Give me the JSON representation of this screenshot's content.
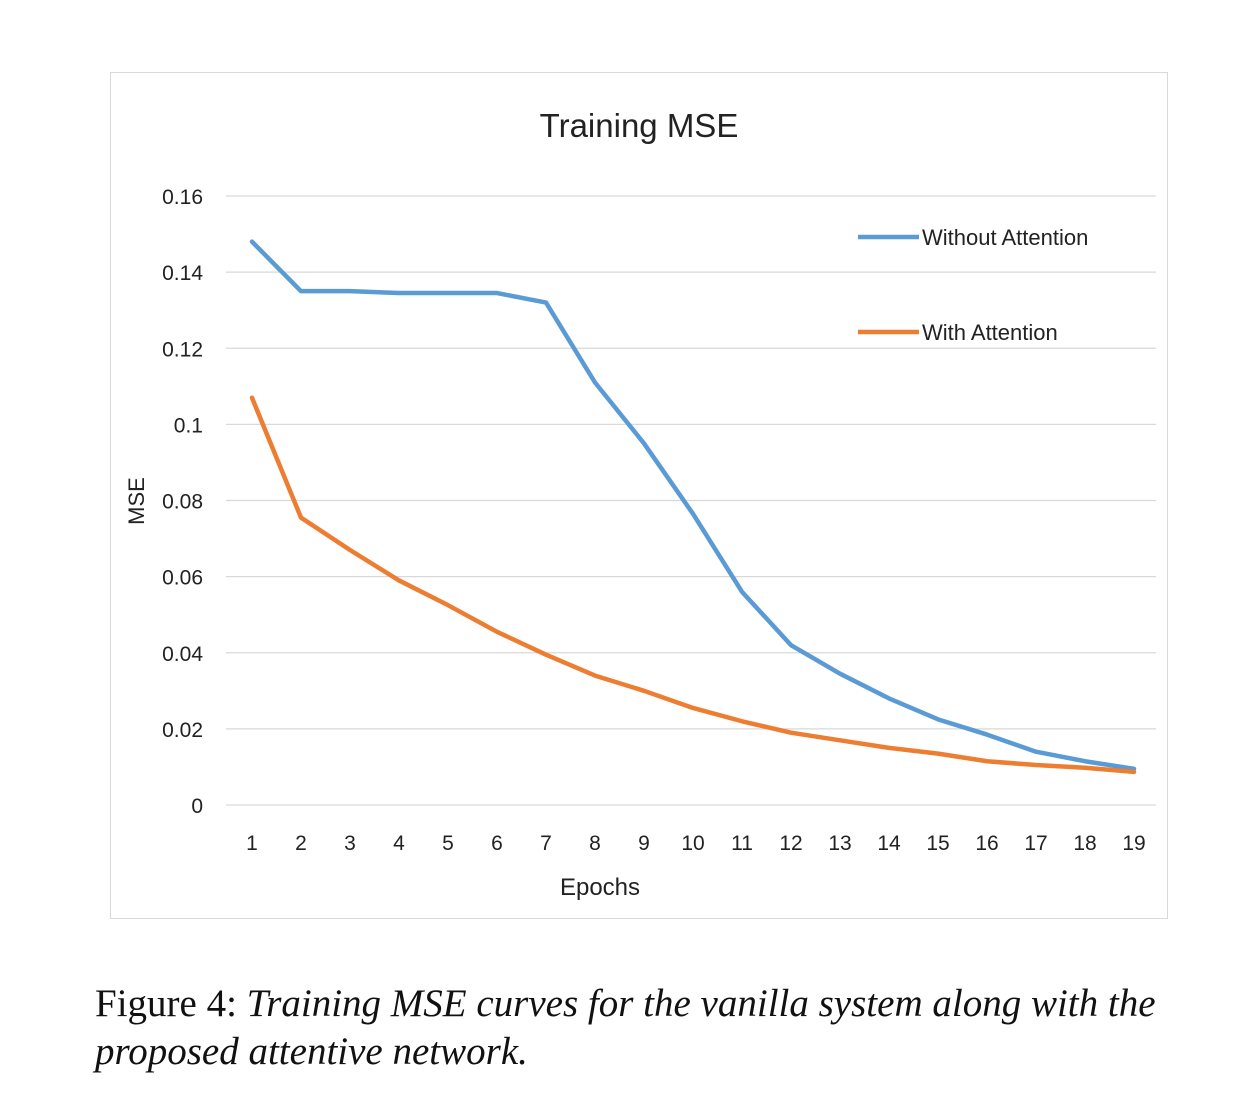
{
  "chart_data": {
    "type": "line",
    "title": "Training MSE",
    "xlabel": "Epochs",
    "ylabel": "MSE",
    "categories": [
      "1",
      "2",
      "3",
      "4",
      "5",
      "6",
      "7",
      "8",
      "9",
      "10",
      "11",
      "12",
      "13",
      "14",
      "15",
      "16",
      "17",
      "18",
      "19"
    ],
    "ylim": [
      0,
      0.16
    ],
    "yticks": [
      "0",
      "0.02",
      "0.04",
      "0.06",
      "0.08",
      "0.1",
      "0.12",
      "0.14",
      "0.16"
    ],
    "ytick_values": [
      0,
      0.02,
      0.04,
      0.06,
      0.08,
      0.1,
      0.12,
      0.14,
      0.16
    ],
    "grid": true,
    "legend": "top-right",
    "series": [
      {
        "name": "Without Attention",
        "color": "#5b9bd5",
        "values": [
          0.148,
          0.135,
          0.135,
          0.1345,
          0.1345,
          0.1345,
          0.132,
          0.111,
          0.095,
          0.0765,
          0.056,
          0.042,
          0.0345,
          0.028,
          0.0225,
          0.0185,
          0.014,
          0.0115,
          0.0095
        ]
      },
      {
        "name": "With Attention",
        "color": "#ed7d31",
        "values": [
          0.107,
          0.0755,
          0.067,
          0.059,
          0.0525,
          0.0455,
          0.0395,
          0.034,
          0.03,
          0.0255,
          0.022,
          0.019,
          0.017,
          0.015,
          0.0135,
          0.0115,
          0.0105,
          0.0098,
          0.0087
        ]
      }
    ]
  },
  "caption": {
    "label": "Figure 4:",
    "text": "Training MSE curves for the vanilla system along with the proposed attentive network."
  }
}
